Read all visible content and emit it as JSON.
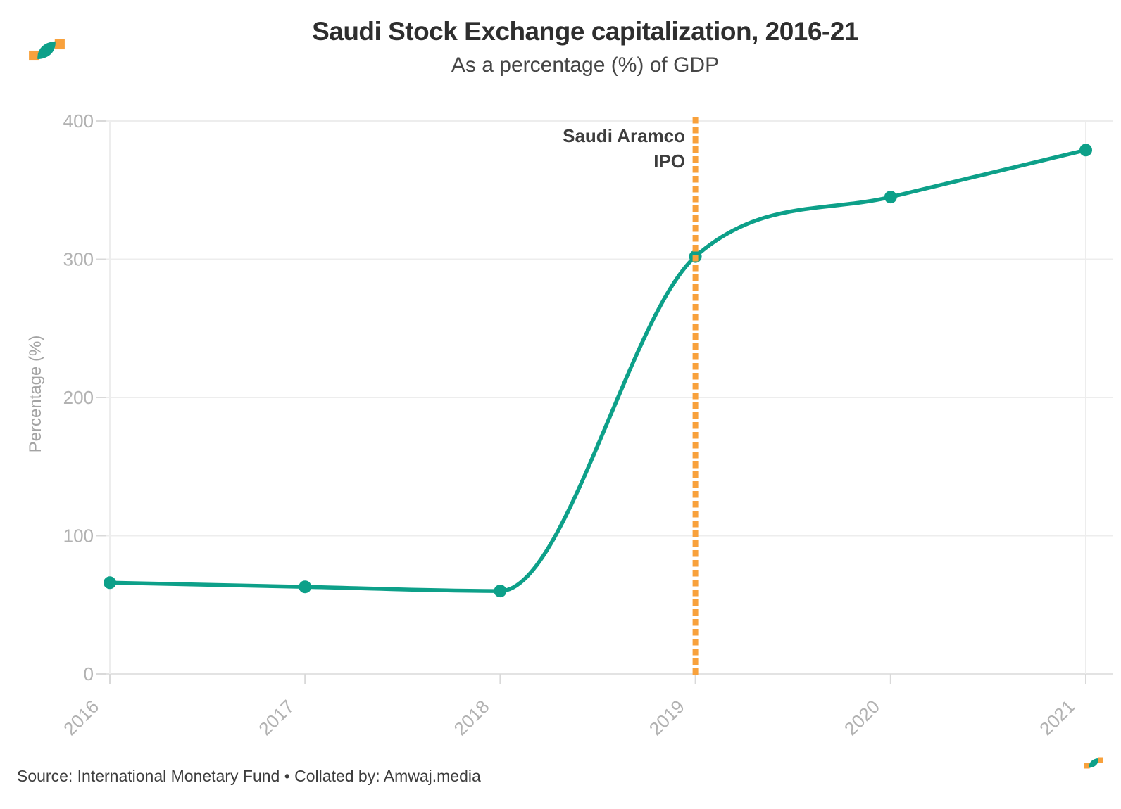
{
  "branding": {
    "logo": "amwaj-media-wave-logo"
  },
  "chart_data": {
    "type": "line",
    "title": "Saudi Stock Exchange capitalization, 2016-21",
    "subtitle": "As a percentage (%) of GDP",
    "x": [
      2016,
      2017,
      2018,
      2019,
      2020,
      2021
    ],
    "series": [
      {
        "name": "Stock exchange capitalization (% of GDP)",
        "values": [
          66,
          63,
          60,
          302,
          345,
          379
        ]
      }
    ],
    "xlabel": "",
    "ylabel": "Percentage (%)",
    "ylim": [
      0,
      400
    ],
    "yticks": [
      0,
      100,
      200,
      300,
      400
    ],
    "grid": "horizontal",
    "legend": "none",
    "line_style": "smooth-monotone",
    "annotation": {
      "line1": "Saudi Aramco",
      "line2": "IPO",
      "x": 2019,
      "style": "dashed-vertical"
    }
  },
  "footer": {
    "source": "Source: International Monetary Fund • Collated by: Amwaj.media"
  },
  "colors": {
    "line": "#0da089",
    "accent": "#f8a13c",
    "grid": "#ededed",
    "axis": "#e3e3e3",
    "tick": "#d9d9d9",
    "tick_label": "#b2b2b2",
    "axis_title": "#a3a3a3",
    "title": "#2e2e2e",
    "subtitle": "#464646",
    "annotation_text": "#3d3d3d",
    "source_text": "#3d3d3d",
    "background": "#ffffff"
  }
}
